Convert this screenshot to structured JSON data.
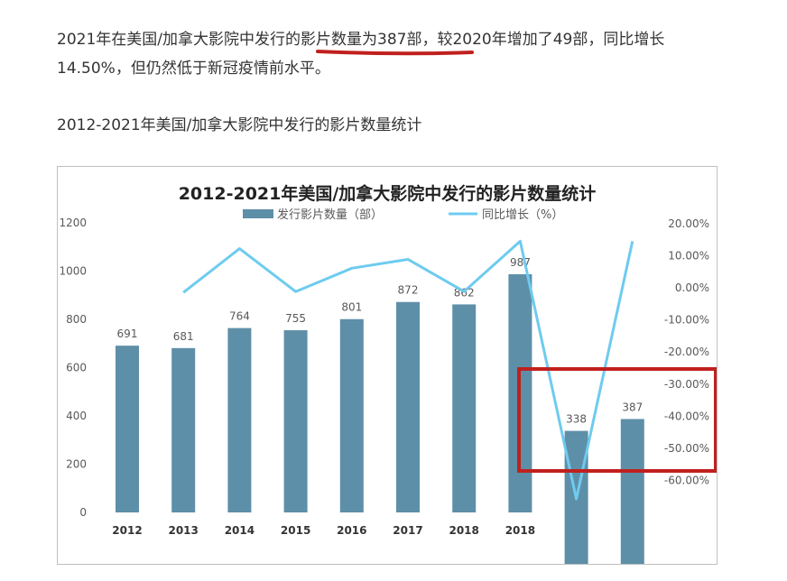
{
  "article": {
    "para_part1": "2021年在美国/加拿大影院中发行的",
    "para_highlight": "影片数量为387部",
    "para_part2": "，较2020年增加了49部，同比增长",
    "para_line2": "14.50%，但仍然低于新冠疫情前水平。",
    "caption": "2012-2021年美国/加拿大影院中发行的影片数量统计"
  },
  "colors": {
    "bar": "#5e8fa8",
    "line": "#6ecbef",
    "annotation": "#c0201e"
  },
  "chart_data": {
    "type": "bar",
    "title": "2012-2021年美国/加拿大影院中发行的影片数量统计",
    "categories": [
      "2012",
      "2013",
      "2014",
      "2015",
      "2016",
      "2017",
      "2018",
      "2018",
      "",
      ""
    ],
    "series": [
      {
        "name": "发行影片数量（部）",
        "type": "bar",
        "axis": "left",
        "values": [
          691,
          681,
          764,
          755,
          801,
          872,
          862,
          987,
          338,
          387
        ]
      },
      {
        "name": "同比增长（%）",
        "type": "line",
        "axis": "right",
        "values": [
          null,
          -1.45,
          12.19,
          -1.18,
          6.09,
          8.86,
          -1.15,
          14.5,
          -65.75,
          14.5
        ]
      }
    ],
    "y_left": {
      "range": [
        0,
        1200
      ],
      "ticks": [
        "0",
        "200",
        "400",
        "600",
        "800",
        "1000",
        "1200"
      ]
    },
    "y_right": {
      "range": [
        -60,
        20
      ],
      "ticks": [
        "-60.00%",
        "-50.00%",
        "-40.00%",
        "-30.00%",
        "-20.00%",
        "-10.00%",
        "0.00%",
        "10.00%",
        "20.00%"
      ]
    },
    "data_labels": [
      "691",
      "681",
      "764",
      "755",
      "801",
      "872",
      "862",
      "987",
      "338",
      "387"
    ],
    "legend_position": "top-center",
    "grid": false
  }
}
